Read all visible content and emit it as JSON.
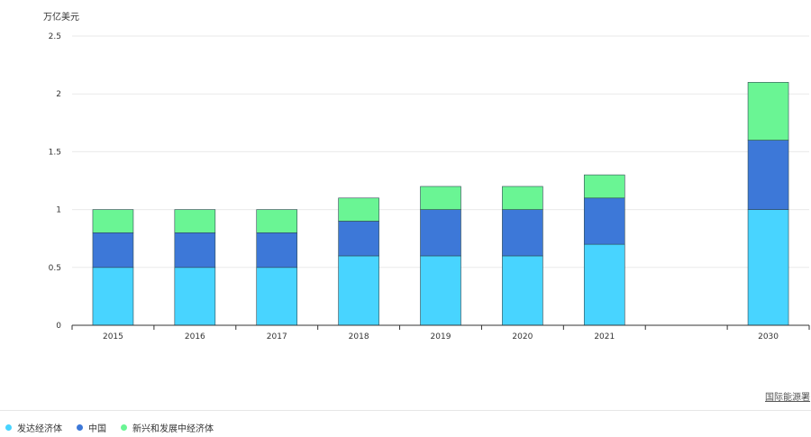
{
  "unit_label": "万亿美元",
  "source_label": "国际能源署",
  "chart_data": {
    "type": "bar",
    "stacked": true,
    "categories": [
      "2015",
      "2016",
      "2017",
      "2018",
      "2019",
      "2020",
      "2021",
      "",
      "2030"
    ],
    "series": [
      {
        "name": "发达经济体",
        "color": "#48d4ff",
        "values": [
          0.5,
          0.5,
          0.5,
          0.6,
          0.6,
          0.6,
          0.7,
          null,
          1.0
        ]
      },
      {
        "name": "中国",
        "color": "#3d78d8",
        "values": [
          0.3,
          0.3,
          0.3,
          0.3,
          0.4,
          0.4,
          0.4,
          null,
          0.6
        ]
      },
      {
        "name": "新兴和发展中经济体",
        "color": "#6af594",
        "values": [
          0.2,
          0.2,
          0.2,
          0.2,
          0.2,
          0.2,
          0.2,
          null,
          0.5
        ]
      }
    ],
    "ylim": [
      0,
      2.5
    ],
    "yticks": [
      "0",
      "0.5",
      "1",
      "1.5",
      "2",
      "2.5"
    ],
    "grid": true,
    "legend_position": "bottom-left"
  }
}
